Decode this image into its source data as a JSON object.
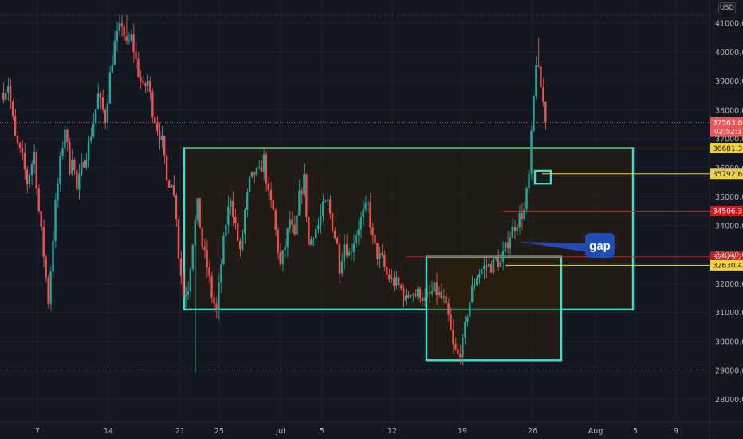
{
  "currency": "USD",
  "colors": {
    "background": "#131722",
    "up": "#26a69a",
    "down": "#ef5350",
    "box": "#40e0d0",
    "box_fill": "#2b1f0a",
    "yellow_line": "#f2d43a",
    "red_line": "#e0191f",
    "gap_callout": "#1f4bb3"
  },
  "chart_data": {
    "type": "candlestick",
    "xlabel": "",
    "ylabel": "",
    "ylim": [
      27400,
      41500
    ],
    "y_ticks": [
      "41000.00",
      "40000.00",
      "39000.00",
      "38000.00",
      "37000.00",
      "36000.00",
      "35000.00",
      "34000.00",
      "33000.00",
      "32000.00",
      "31000.00",
      "30000.00",
      "29000.00",
      "28000.00"
    ],
    "x_ticks": [
      "7",
      "14",
      "21",
      "25",
      "Jul",
      "5",
      "12",
      "19",
      "26",
      "Aug",
      "5",
      "9"
    ],
    "path_keys": [
      [
        0,
        38600
      ],
      [
        2,
        38900
      ],
      [
        5,
        37000
      ],
      [
        8,
        36300
      ],
      [
        10,
        35500
      ],
      [
        13,
        36500
      ],
      [
        15,
        34500
      ],
      [
        17,
        33000
      ],
      [
        19,
        31400
      ],
      [
        20,
        32500
      ],
      [
        22,
        34700
      ],
      [
        24,
        36200
      ],
      [
        26,
        37400
      ],
      [
        28,
        36000
      ],
      [
        29,
        36500
      ],
      [
        31,
        35200
      ],
      [
        33,
        36000
      ],
      [
        36,
        36800
      ],
      [
        38,
        37600
      ],
      [
        40,
        38500
      ],
      [
        43,
        37700
      ],
      [
        45,
        39200
      ],
      [
        47,
        40300
      ],
      [
        50,
        41000
      ],
      [
        52,
        40200
      ],
      [
        54,
        40500
      ],
      [
        57,
        39300
      ],
      [
        59,
        38700
      ],
      [
        61,
        39000
      ],
      [
        63,
        38000
      ],
      [
        65,
        37400
      ],
      [
        67,
        36900
      ],
      [
        69,
        35500
      ],
      [
        71,
        35600
      ],
      [
        73,
        34400
      ],
      [
        74,
        33000
      ],
      [
        76,
        31600
      ],
      [
        78,
        31900
      ],
      [
        80,
        33500
      ],
      [
        82,
        34700
      ],
      [
        84,
        33300
      ],
      [
        86,
        32600
      ],
      [
        88,
        31600
      ],
      [
        90,
        31000
      ],
      [
        92,
        32700
      ],
      [
        94,
        34100
      ],
      [
        96,
        35000
      ],
      [
        98,
        34000
      ],
      [
        100,
        33000
      ],
      [
        102,
        34500
      ],
      [
        104,
        35500
      ],
      [
        106,
        35800
      ],
      [
        108,
        35800
      ],
      [
        110,
        36300
      ],
      [
        112,
        35000
      ],
      [
        114,
        34500
      ],
      [
        115,
        33800
      ],
      [
        117,
        32600
      ],
      [
        119,
        33300
      ],
      [
        121,
        34200
      ],
      [
        123,
        33500
      ],
      [
        125,
        35000
      ],
      [
        127,
        35600
      ],
      [
        129,
        33300
      ],
      [
        131,
        33800
      ],
      [
        133,
        34000
      ],
      [
        135,
        34600
      ],
      [
        137,
        34800
      ],
      [
        139,
        34000
      ],
      [
        141,
        33300
      ],
      [
        142,
        32600
      ],
      [
        144,
        33400
      ],
      [
        146,
        33000
      ],
      [
        148,
        33500
      ],
      [
        150,
        34000
      ],
      [
        152,
        34400
      ],
      [
        154,
        34700
      ],
      [
        156,
        33500
      ],
      [
        158,
        33000
      ],
      [
        160,
        32800
      ],
      [
        162,
        32300
      ],
      [
        164,
        32100
      ],
      [
        166,
        32000
      ],
      [
        168,
        31800
      ],
      [
        170,
        31400
      ],
      [
        172,
        31800
      ],
      [
        174,
        31600
      ],
      [
        176,
        31700
      ],
      [
        178,
        31400
      ],
      [
        180,
        31600
      ],
      [
        182,
        31800
      ],
      [
        184,
        31600
      ],
      [
        186,
        31400
      ],
      [
        188,
        30800
      ],
      [
        190,
        29800
      ],
      [
        192,
        29500
      ],
      [
        194,
        29900
      ],
      [
        196,
        31000
      ],
      [
        198,
        31800
      ],
      [
        200,
        32300
      ],
      [
        202,
        32500
      ],
      [
        204,
        32600
      ],
      [
        206,
        32600
      ],
      [
        208,
        32800
      ],
      [
        210,
        32700
      ],
      [
        212,
        33200
      ],
      [
        214,
        33700
      ],
      [
        216,
        34000
      ],
      [
        218,
        34300
      ],
      [
        220,
        34500
      ],
      [
        222,
        35700
      ],
      [
        224,
        38400
      ],
      [
        225,
        39700
      ],
      [
        227,
        38800
      ],
      [
        229,
        37700
      ]
    ],
    "series": [
      {
        "name": "",
        "ohlc_sample": [
          {
            "o": 38500,
            "h": 38900,
            "l": 37900,
            "c": 38200
          },
          {
            "o": 40200,
            "h": 41300,
            "l": 39700,
            "c": 40900
          },
          {
            "o": 33500,
            "h": 34000,
            "l": 28900,
            "c": 32000
          },
          {
            "o": 36500,
            "h": 36900,
            "l": 35500,
            "c": 35700
          },
          {
            "o": 29800,
            "h": 30300,
            "l": 29400,
            "c": 29900
          },
          {
            "o": 34600,
            "h": 40500,
            "l": 34300,
            "c": 40000
          },
          {
            "o": 39400,
            "h": 39500,
            "l": 37400,
            "c": 37560
          }
        ]
      }
    ],
    "zones": [
      {
        "y_top": 36681.35,
        "y_bottom": 31100
      },
      {
        "y_top": 32925.21,
        "y_bottom": 29350
      },
      {
        "y_top": 35900,
        "y_bottom": 35450
      }
    ],
    "levels": [
      {
        "label": "36681.35",
        "value": 36681.35,
        "color": "yellow"
      },
      {
        "label": "35792.60",
        "value": 35792.6,
        "color": "yellow"
      },
      {
        "label": "34506.35",
        "value": 34506.35,
        "color": "red"
      },
      {
        "label": "32925.21",
        "value": 32925.21,
        "color": "red"
      },
      {
        "label": "32630.42",
        "value": 32630.42,
        "color": "yellow"
      }
    ],
    "gap_support_level": 29020,
    "last_price": {
      "label": "37563.84",
      "countdown": "02:52:37",
      "value": 37563.84
    },
    "annotation": "gap"
  }
}
